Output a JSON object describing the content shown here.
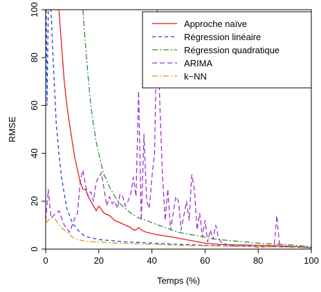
{
  "chart_data": {
    "type": "line",
    "title": "",
    "xlabel": "Temps (%)",
    "ylabel": "RMSE",
    "xlim": [
      0,
      100
    ],
    "ylim": [
      0,
      100
    ],
    "xticks": [
      0,
      20,
      40,
      60,
      80,
      100
    ],
    "yticks": [
      0,
      20,
      40,
      60,
      80,
      100
    ],
    "grid": false,
    "legend_position": "top-right",
    "series": [
      {
        "name": "Approche naïve",
        "color": "#e31a1c",
        "dash": "solid",
        "x": [
          0.2,
          1,
          2,
          3,
          4,
          5,
          6,
          7,
          8,
          9,
          10,
          11,
          12,
          13,
          14,
          15,
          16,
          17,
          18,
          19,
          20,
          22,
          24,
          26,
          28,
          30,
          32,
          33,
          34,
          35,
          36,
          38,
          40,
          42,
          45,
          48,
          50,
          55,
          60,
          65,
          70,
          75,
          80,
          85,
          90,
          95,
          100
        ],
        "y": [
          100,
          100,
          100,
          100,
          100,
          100,
          85,
          70,
          60,
          52,
          45,
          38,
          33,
          28,
          25,
          25,
          22,
          20,
          18,
          16,
          18,
          15,
          14,
          12,
          11,
          10,
          9,
          8,
          8,
          9,
          8,
          7,
          6.5,
          6,
          5.5,
          5,
          4.5,
          3.5,
          2.5,
          2,
          1.8,
          1.7,
          1.6,
          1.5,
          1.3,
          1,
          0.5
        ]
      },
      {
        "name": "Régression linéaire",
        "color": "#1f3fd4",
        "dash": "5 4",
        "x": [
          0.2,
          0.5,
          1,
          2,
          3,
          4,
          5,
          6,
          7,
          8,
          9,
          10,
          12,
          14,
          16,
          18,
          20,
          25,
          30,
          35,
          40,
          50,
          60,
          70,
          80,
          90,
          100
        ],
        "y": [
          100,
          60,
          100,
          100,
          75,
          52,
          40,
          30,
          23,
          17,
          14,
          11,
          8,
          6,
          5,
          4.5,
          4,
          3.5,
          3,
          2.8,
          2.5,
          2,
          1.6,
          1.3,
          1.1,
          1,
          0.8
        ]
      },
      {
        "name": "Régression quadratique",
        "color": "#2e8b2e",
        "dash": "8 3 2 3",
        "x": [
          14,
          15,
          16,
          17,
          18,
          19,
          20,
          21,
          22,
          24,
          26,
          28,
          30,
          32,
          35,
          38,
          40,
          45,
          50,
          55,
          60,
          65,
          70,
          75,
          80,
          85,
          90,
          95,
          100
        ],
        "y": [
          100,
          85,
          72,
          60,
          52,
          45,
          40,
          35,
          31,
          26,
          22,
          19,
          17,
          15,
          13,
          12,
          11,
          9,
          7,
          6,
          5,
          4,
          3.5,
          3,
          2.5,
          2.2,
          2,
          1.5,
          1
        ]
      },
      {
        "name": "ARIMA",
        "color": "#9932cc",
        "dash": "7 4",
        "x": [
          0,
          1,
          2,
          3,
          5,
          7,
          9,
          11,
          12,
          13,
          14,
          15,
          16,
          17,
          18,
          19,
          20,
          21,
          22,
          23,
          24,
          25,
          26,
          27,
          28,
          29,
          30,
          31,
          32,
          33,
          34,
          35,
          36,
          37,
          38,
          39,
          40,
          41,
          42,
          43,
          44,
          45,
          46,
          47,
          48,
          49,
          50,
          51,
          52,
          53,
          54,
          55,
          56,
          57,
          58,
          59,
          60,
          61,
          62,
          63,
          64,
          65,
          66,
          68,
          70,
          72,
          75,
          78,
          80,
          84,
          86,
          87,
          88,
          90,
          95,
          100
        ],
        "y": [
          12,
          25,
          13,
          14,
          16,
          10,
          7,
          13,
          15,
          28,
          33,
          27,
          22,
          24,
          20,
          28,
          30,
          32,
          25,
          18,
          22,
          19,
          20,
          17,
          23,
          22,
          18,
          20,
          23,
          30,
          22,
          66,
          12,
          48,
          20,
          17,
          30,
          40,
          100,
          60,
          30,
          12,
          25,
          8,
          15,
          22,
          20,
          8,
          14,
          20,
          12,
          31,
          25,
          8,
          15,
          5,
          12,
          3,
          8,
          4,
          10,
          5,
          3,
          2,
          1.5,
          1,
          2,
          1,
          0.8,
          1,
          1,
          14,
          2,
          1,
          0.8,
          0.6
        ]
      },
      {
        "name": "k−NN",
        "color": "#e69500",
        "dash": "8 3 2 3",
        "x": [
          0,
          1,
          2,
          3,
          4,
          5,
          6,
          7,
          8,
          9,
          10,
          12,
          14,
          16,
          18,
          20,
          25,
          30,
          35,
          40,
          45,
          50,
          60,
          70,
          80,
          90,
          100
        ],
        "y": [
          11,
          12,
          13,
          13,
          12,
          10,
          9,
          8,
          7,
          6,
          5,
          4,
          3.5,
          3.2,
          3,
          3,
          2.6,
          2.3,
          2.2,
          2,
          1.8,
          1.6,
          1.4,
          1.2,
          1,
          0.8,
          0.5
        ]
      }
    ]
  }
}
